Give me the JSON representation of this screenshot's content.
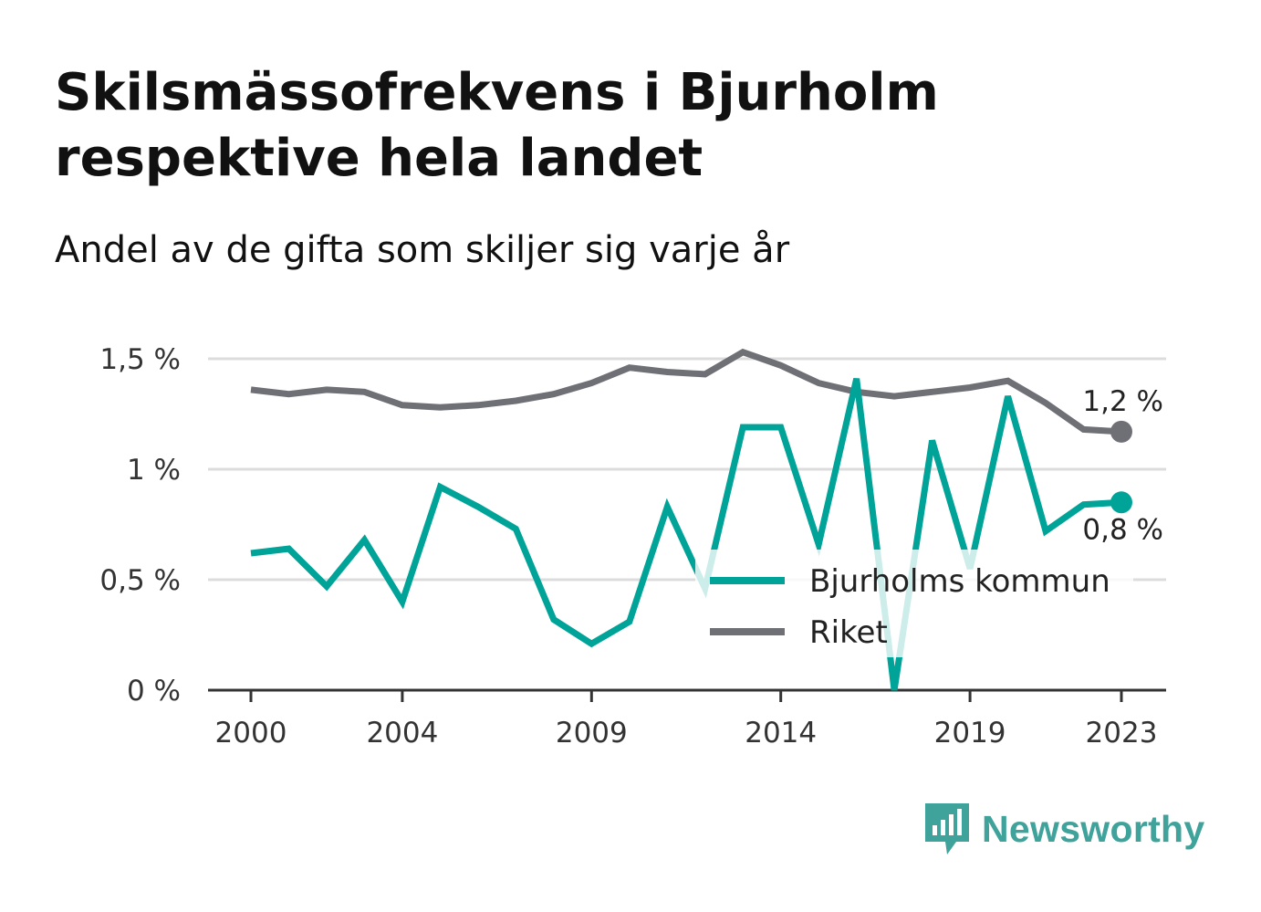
{
  "title": "Skilsmässofrekvens i Bjurholm respektive hela landet",
  "subtitle": "Andel av de gifta som skiljer sig varje år",
  "brand": {
    "name": "Newsworthy",
    "icon": "bar-chart-speech-bubble-icon",
    "color": "#3fa39b"
  },
  "chart_data": {
    "type": "line",
    "x": [
      2000,
      2001,
      2002,
      2003,
      2004,
      2005,
      2006,
      2007,
      2008,
      2009,
      2010,
      2011,
      2012,
      2013,
      2014,
      2015,
      2016,
      2017,
      2018,
      2019,
      2020,
      2021,
      2022,
      2023
    ],
    "x_ticks": [
      2000,
      2004,
      2009,
      2014,
      2019,
      2023
    ],
    "y_ticks": [
      {
        "value": 0,
        "label": "0 %"
      },
      {
        "value": 0.5,
        "label": "0,5 %"
      },
      {
        "value": 1,
        "label": "1 %"
      },
      {
        "value": 1.5,
        "label": "1,5 %"
      }
    ],
    "ylim": [
      0,
      1.5
    ],
    "grid": true,
    "legend_position": "bottom-right",
    "series": [
      {
        "name": "Bjurholms kommun",
        "color": "#00a398",
        "values": [
          0.62,
          0.64,
          0.47,
          0.68,
          0.4,
          0.92,
          0.83,
          0.73,
          0.32,
          0.21,
          0.31,
          0.83,
          0.46,
          1.19,
          1.19,
          0.66,
          1.41,
          0.0,
          1.13,
          0.55,
          1.33,
          0.72,
          0.84,
          0.85
        ],
        "end_label": "0,8 %"
      },
      {
        "name": "Riket",
        "color": "#6f6f76",
        "values": [
          1.36,
          1.34,
          1.36,
          1.35,
          1.29,
          1.28,
          1.29,
          1.31,
          1.34,
          1.39,
          1.46,
          1.44,
          1.43,
          1.53,
          1.47,
          1.39,
          1.35,
          1.33,
          1.35,
          1.37,
          1.4,
          1.3,
          1.18,
          1.17
        ],
        "end_label": "1,2 %"
      }
    ]
  }
}
